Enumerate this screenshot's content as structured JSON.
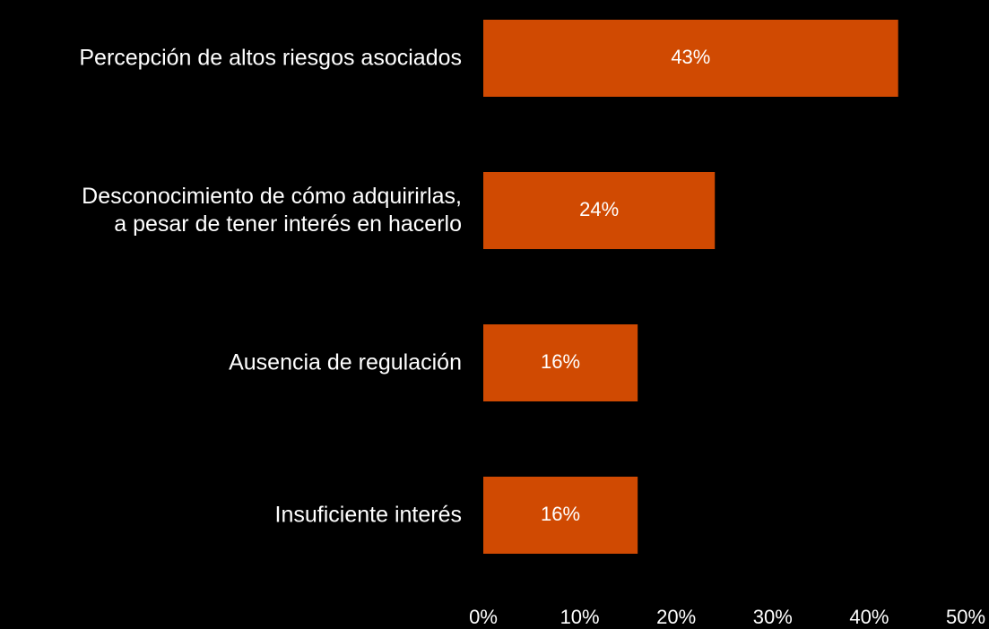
{
  "chart_data": {
    "type": "barh",
    "categories": [
      "Percepción de altos riesgos asociados",
      "Desconocimiento de cómo adquirirlas,\na pesar de tener interés en hacerlo",
      "Ausencia de regulación",
      "Insuficiente interés"
    ],
    "values": [
      43,
      24,
      16,
      16
    ],
    "value_labels": [
      "43%",
      "24%",
      "16%",
      "16%"
    ],
    "color": "#d04a02",
    "xlim": [
      0,
      50
    ],
    "xticks": [
      {
        "value": 0,
        "label": "0%"
      },
      {
        "value": 10,
        "label": "10%"
      },
      {
        "value": 20,
        "label": "20%"
      },
      {
        "value": 30,
        "label": "30%"
      },
      {
        "value": 40,
        "label": "40%"
      },
      {
        "value": 50,
        "label": "50%"
      }
    ],
    "grid": false
  }
}
